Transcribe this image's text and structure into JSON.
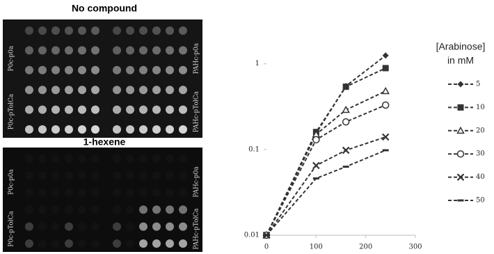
{
  "panels": [
    {
      "title": "No compound",
      "left_labels": [
        "P0c-p0a",
        "P0c-pTolCa"
      ],
      "right_labels": [
        "PAHc-p0a",
        "PAHc-pTolCa"
      ]
    },
    {
      "title": "1-hexene",
      "left_labels": [
        "P0c-p0a",
        "P0c-pTolCa"
      ],
      "right_labels": [
        "PAHc-p0a",
        "PAHc-pTolCa"
      ]
    }
  ],
  "chart_data": {
    "type": "line",
    "log_y": true,
    "legend_title": [
      "[Arabinose]",
      "in mM"
    ],
    "x": [
      0,
      100,
      160,
      240
    ],
    "xlim": [
      0,
      300
    ],
    "xticks": [
      0,
      100,
      200,
      300
    ],
    "ylim": [
      0.01,
      1.5
    ],
    "yticks": [
      0.01,
      0.1,
      1
    ],
    "series": [
      {
        "name": "5",
        "color": "#333333",
        "marker": "diamond",
        "values": [
          0.01,
          0.154,
          0.55,
          1.25
        ]
      },
      {
        "name": "10",
        "color": "#333333",
        "marker": "square",
        "values": [
          0.01,
          0.16,
          0.54,
          0.89
        ]
      },
      {
        "name": "20",
        "color": "#333333",
        "marker": "open-triangle",
        "values": [
          0.01,
          0.15,
          0.29,
          0.48
        ]
      },
      {
        "name": "30",
        "color": "#333333",
        "marker": "open-circle",
        "values": [
          0.01,
          0.13,
          0.21,
          0.33
        ]
      },
      {
        "name": "40",
        "color": "#333333",
        "marker": "cross",
        "values": [
          0.01,
          0.065,
          0.098,
          0.14
        ]
      },
      {
        "name": "50",
        "color": "#333333",
        "marker": "dash",
        "values": [
          0.01,
          0.046,
          0.063,
          0.098
        ]
      }
    ]
  }
}
